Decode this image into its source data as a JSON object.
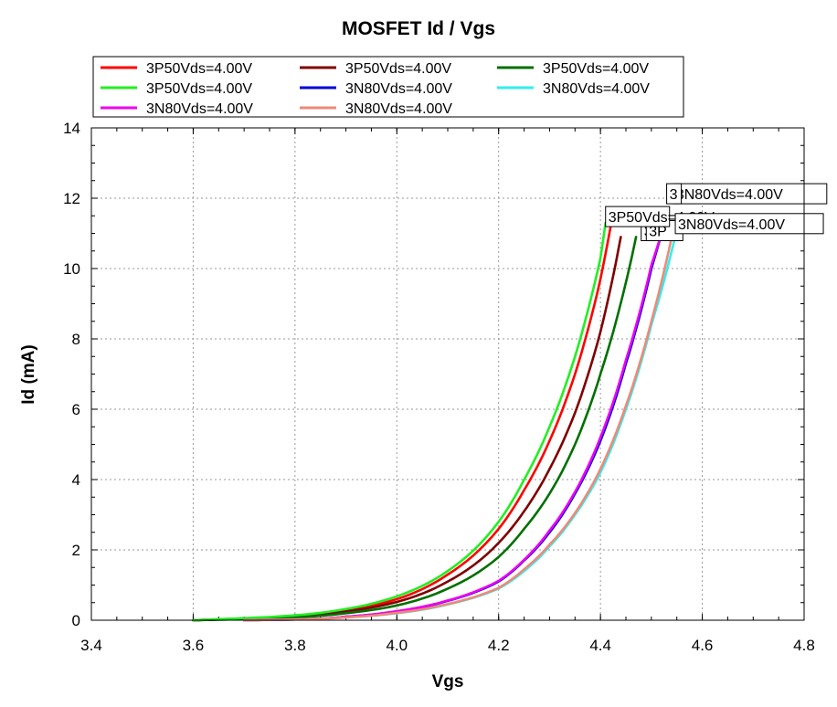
{
  "chart_data": {
    "type": "line",
    "title": "MOSFET Id / Vgs",
    "xlabel": "Vgs",
    "ylabel": "Id (mA)",
    "xlim": [
      3.4,
      4.8
    ],
    "ylim": [
      0,
      14
    ],
    "x_ticks": [
      "3.4",
      "3.6",
      "3.8",
      "4.0",
      "4.2",
      "4.4",
      "4.6",
      "4.8"
    ],
    "y_ticks": [
      "0",
      "2",
      "4",
      "6",
      "8",
      "10",
      "12",
      "14"
    ],
    "grid": true,
    "legend_position": "top",
    "series": [
      {
        "name": "3P50Vds=4.00V",
        "color": "#ff0000",
        "x": [
          3.6,
          3.7,
          3.8,
          3.9,
          4.0,
          4.1,
          4.2,
          4.25,
          4.3,
          4.35,
          4.4,
          4.42
        ],
        "y": [
          0.0,
          0.05,
          0.12,
          0.28,
          0.6,
          1.3,
          2.6,
          3.7,
          5.1,
          7.0,
          9.7,
          11.2
        ]
      },
      {
        "name": "3P50Vds=4.00V",
        "color": "#800000",
        "x": [
          3.6,
          3.7,
          3.8,
          3.9,
          4.0,
          4.1,
          4.2,
          4.25,
          4.3,
          4.35,
          4.4,
          4.44
        ],
        "y": [
          0.0,
          0.04,
          0.1,
          0.25,
          0.52,
          1.1,
          2.2,
          3.1,
          4.3,
          5.9,
          8.2,
          10.9
        ]
      },
      {
        "name": "3P50Vds=4.00V",
        "color": "#007000",
        "x": [
          3.6,
          3.7,
          3.8,
          3.9,
          4.0,
          4.1,
          4.2,
          4.25,
          4.3,
          4.35,
          4.4,
          4.47
        ],
        "y": [
          0.0,
          0.03,
          0.08,
          0.2,
          0.42,
          0.9,
          1.8,
          2.6,
          3.6,
          5.0,
          7.0,
          10.9
        ]
      },
      {
        "name": "3P50Vds=4.00V",
        "color": "#22ee22",
        "x": [
          3.6,
          3.7,
          3.8,
          3.9,
          4.0,
          4.1,
          4.2,
          4.25,
          4.3,
          4.35,
          4.4,
          4.41
        ],
        "y": [
          0.0,
          0.06,
          0.14,
          0.32,
          0.68,
          1.4,
          2.8,
          4.0,
          5.5,
          7.5,
          10.3,
          11.3
        ]
      },
      {
        "name": "3N80Vds=4.00V",
        "color": "#0000dd",
        "x": [
          3.7,
          3.8,
          3.9,
          4.0,
          4.1,
          4.2,
          4.25,
          4.3,
          4.35,
          4.4,
          4.45,
          4.5,
          4.52
        ],
        "y": [
          0.0,
          0.02,
          0.1,
          0.25,
          0.55,
          1.1,
          1.7,
          2.5,
          3.6,
          5.1,
          7.3,
          10.0,
          11.0
        ]
      },
      {
        "name": "3N80Vds=4.00V",
        "color": "#33eeee",
        "x": [
          3.7,
          3.8,
          3.9,
          4.0,
          4.1,
          4.2,
          4.25,
          4.3,
          4.35,
          4.4,
          4.45,
          4.5,
          4.55
        ],
        "y": [
          0.0,
          0.02,
          0.08,
          0.2,
          0.45,
          0.9,
          1.4,
          2.1,
          3.0,
          4.2,
          6.0,
          8.4,
          11.1
        ]
      },
      {
        "name": "3N80Vds=4.00V",
        "color": "#ee00ee",
        "x": [
          3.7,
          3.8,
          3.9,
          4.0,
          4.1,
          4.2,
          4.25,
          4.3,
          4.35,
          4.4,
          4.45,
          4.5,
          4.52
        ],
        "y": [
          0.0,
          0.02,
          0.1,
          0.26,
          0.56,
          1.12,
          1.72,
          2.55,
          3.65,
          5.2,
          7.4,
          10.1,
          11.0
        ]
      },
      {
        "name": "3N80Vds=4.00V",
        "color": "#f08878",
        "x": [
          3.7,
          3.8,
          3.9,
          4.0,
          4.1,
          4.2,
          4.25,
          4.3,
          4.35,
          4.4,
          4.45,
          4.5,
          4.54
        ],
        "y": [
          0.0,
          0.02,
          0.08,
          0.21,
          0.46,
          0.92,
          1.45,
          2.15,
          3.05,
          4.3,
          6.1,
          8.5,
          10.9
        ]
      }
    ],
    "end_labels": [
      {
        "text": "3P50Vds=4.00V"
      },
      {
        "text": "3"
      },
      {
        "text": "3N80Vds=4.00V"
      },
      {
        "text": "3N80Vds=4.00V"
      },
      {
        "text": "3P"
      },
      {
        "text": "3P"
      }
    ]
  }
}
